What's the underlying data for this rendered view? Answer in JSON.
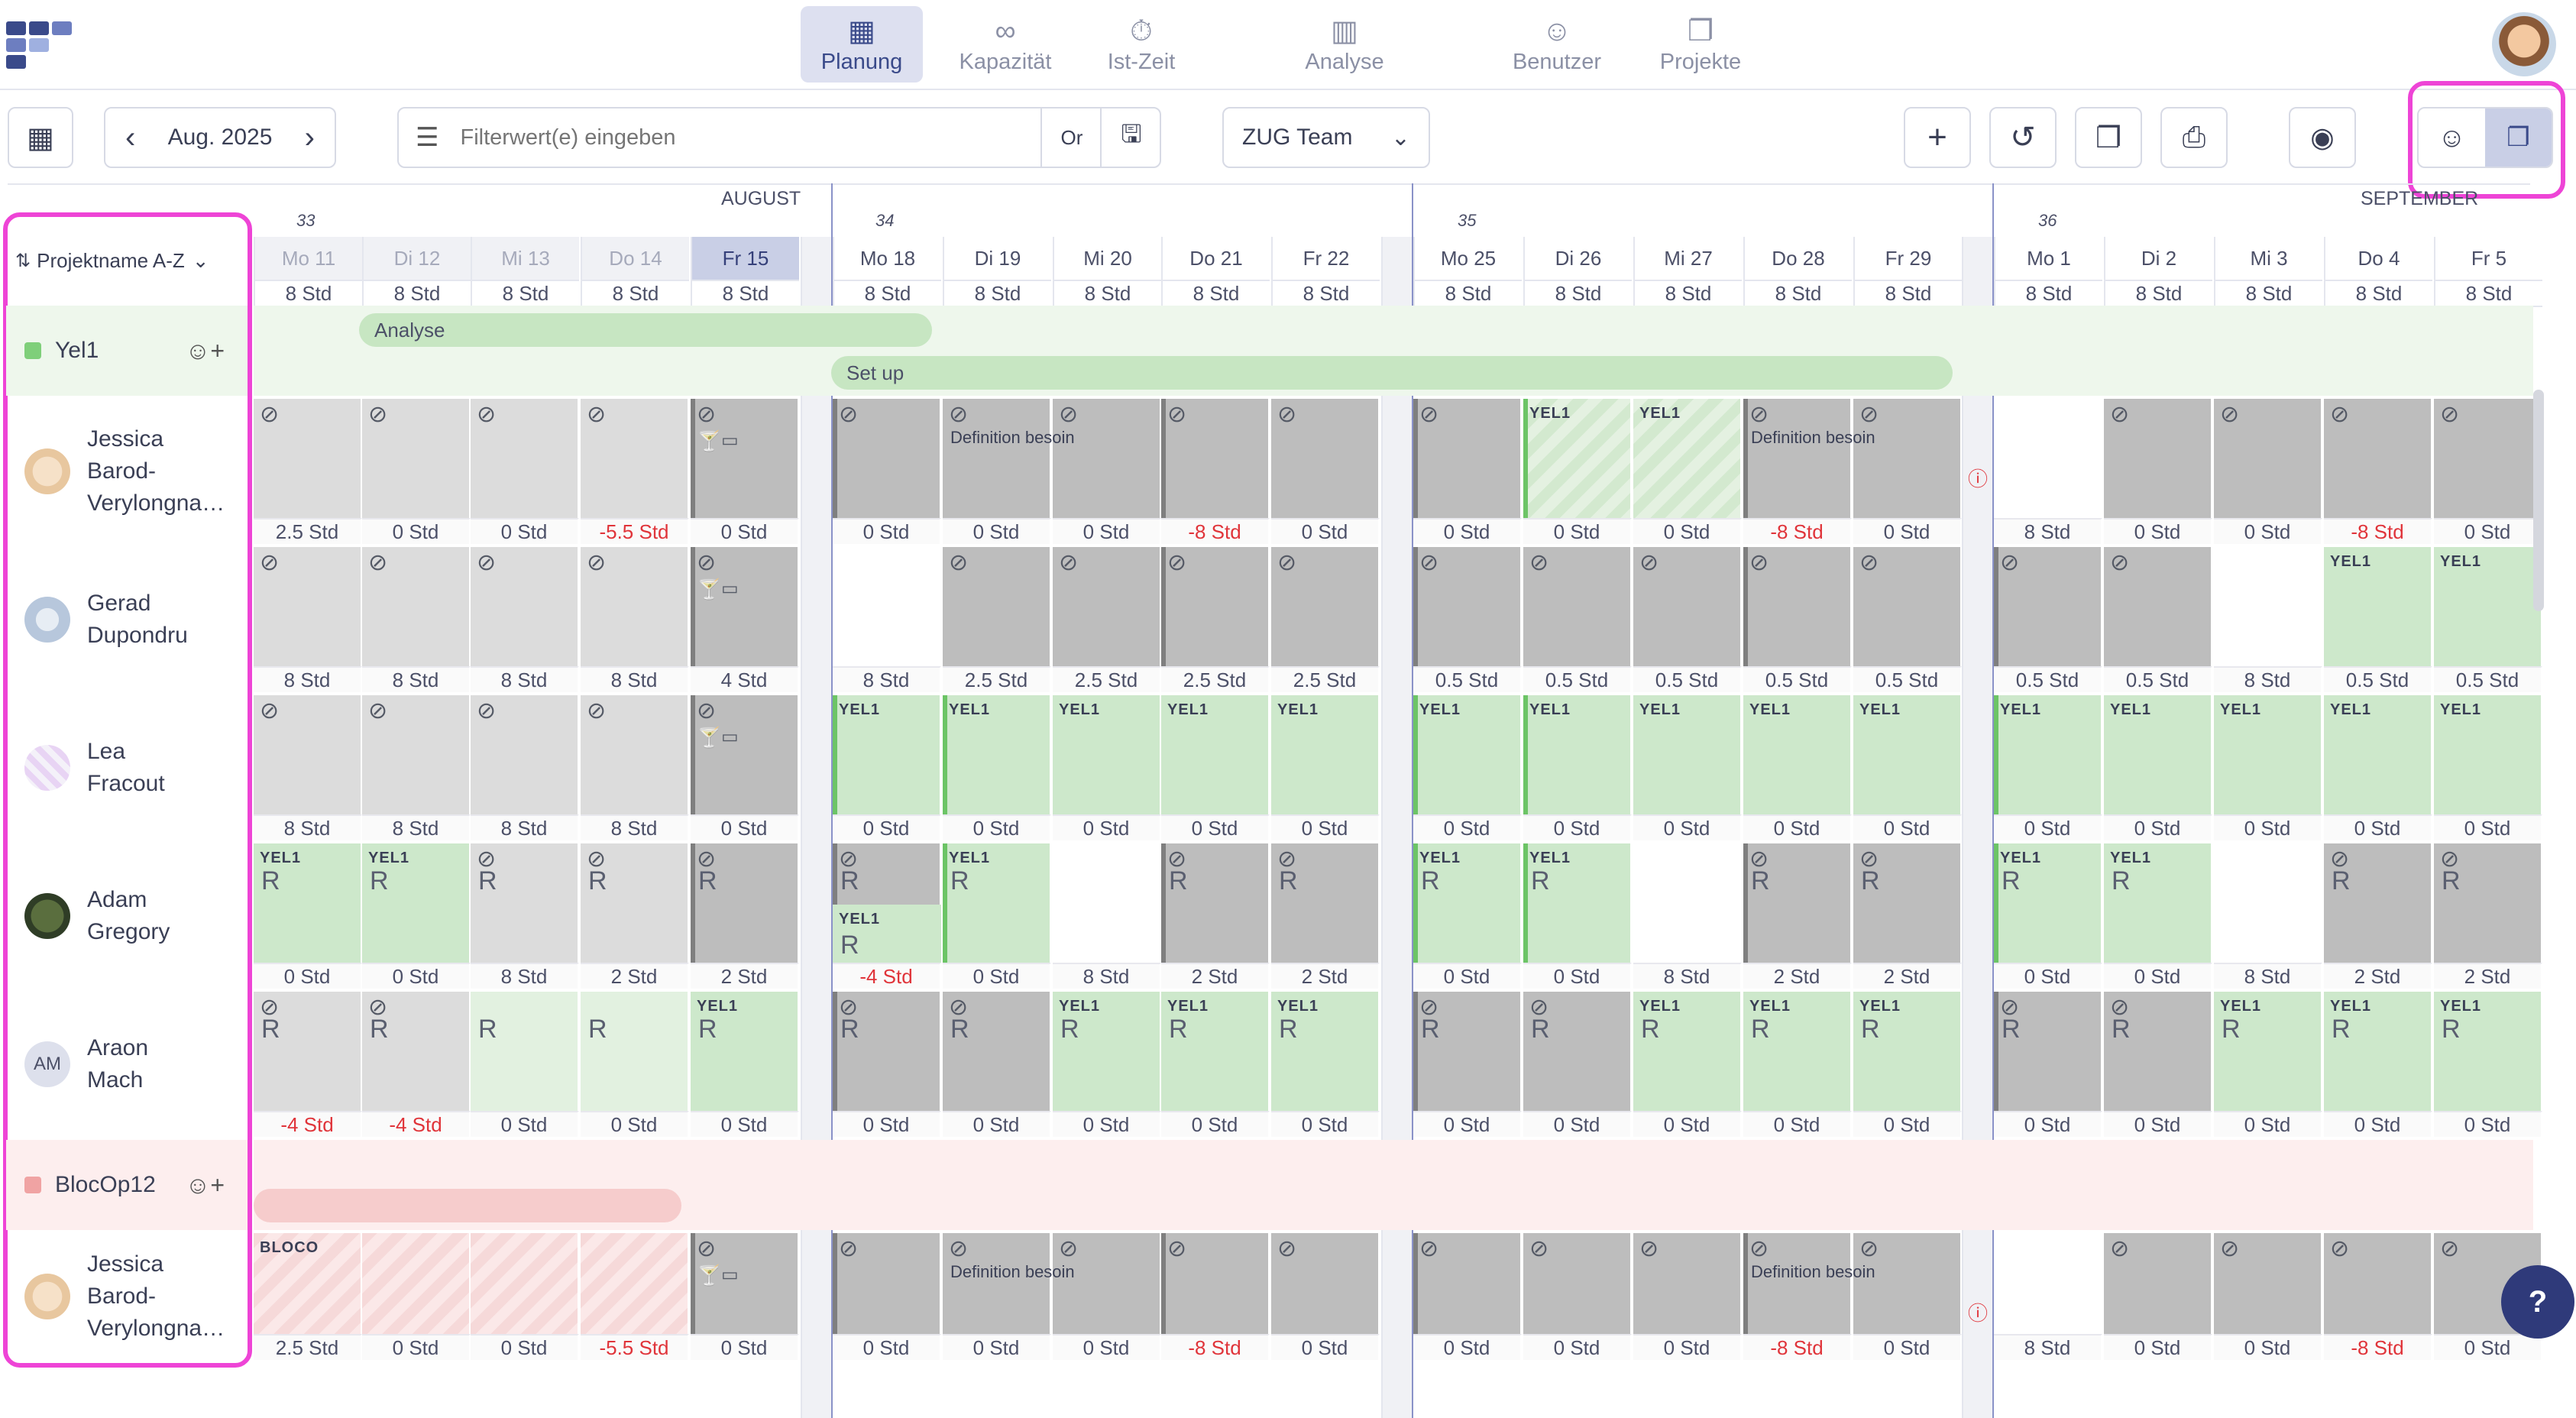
{
  "nav": {
    "items": [
      {
        "label": "Planung",
        "icon": "calendar-icon",
        "active": true
      },
      {
        "label": "Kapazität",
        "icon": "infinity-icon"
      },
      {
        "label": "Ist-Zeit",
        "icon": "stopwatch-icon"
      },
      {
        "label": "Analyse",
        "icon": "bar-chart-icon"
      },
      {
        "label": "Benutzer",
        "icon": "user-icon"
      },
      {
        "label": "Projekte",
        "icon": "folders-icon"
      }
    ]
  },
  "toolbar": {
    "month": "Aug. 2025",
    "filter_placeholder": "Filterwert(e) eingeben",
    "or_label": "Or",
    "team": "ZUG Team"
  },
  "calendar": {
    "months": [
      "AUGUST",
      "SEPTEMBER"
    ],
    "weeks": [
      "33",
      "34",
      "35",
      "36"
    ],
    "days": [
      "Mo 11",
      "Di 12",
      "Mi 13",
      "Do 14",
      "Fr 15",
      "Mo 18",
      "Di 19",
      "Mi 20",
      "Do 21",
      "Fr 22",
      "Mo 25",
      "Di 26",
      "Mi 27",
      "Do 28",
      "Fr 29",
      "Mo 1",
      "Di 2",
      "Mi 3",
      "Do 4",
      "Fr 5"
    ],
    "capacity": [
      "8 Std",
      "8 Std",
      "8 Std",
      "8 Std",
      "8 Std",
      "8 Std",
      "8 Std",
      "8 Std",
      "8 Std",
      "8 Std",
      "8 Std",
      "8 Std",
      "8 Std",
      "8 Std",
      "8 Std",
      "8 Std",
      "8 Std",
      "8 Std",
      "8 Std",
      "8 Std"
    ],
    "sort_label": "Projektname A-Z"
  },
  "projects": [
    {
      "name": "Yel1",
      "color": "#7fcf7a",
      "bars": [
        "Analyse",
        "Set up"
      ]
    },
    {
      "name": "BlocOp12",
      "color": "#f0a3a3",
      "bars": [
        ""
      ]
    }
  ],
  "people": [
    {
      "first": "Jessica",
      "last": "Barod-",
      "extra": "Verylongna…",
      "hours": [
        "2.5 Std",
        "0 Std",
        "0 Std",
        "-5.5 Std",
        "0 Std",
        "0 Std",
        "0 Std",
        "0 Std",
        "-8 Std",
        "0 Std",
        "0 Std",
        "0 Std",
        "0 Std",
        "-8 Std",
        "0 Std",
        "8 Std",
        "0 Std",
        "0 Std",
        "-8 Std",
        "0 Std"
      ]
    },
    {
      "first": "Gerad",
      "last": "Dupondru",
      "hours": [
        "8 Std",
        "8 Std",
        "8 Std",
        "8 Std",
        "4 Std",
        "8 Std",
        "2.5 Std",
        "2.5 Std",
        "2.5 Std",
        "2.5 Std",
        "0.5 Std",
        "0.5 Std",
        "0.5 Std",
        "0.5 Std",
        "0.5 Std",
        "0.5 Std",
        "0.5 Std",
        "8 Std",
        "0.5 Std",
        "0.5 Std"
      ]
    },
    {
      "first": "Lea",
      "last": "Fracout",
      "hours": [
        "8 Std",
        "8 Std",
        "8 Std",
        "8 Std",
        "0 Std",
        "0 Std",
        "0 Std",
        "0 Std",
        "0 Std",
        "0 Std",
        "0 Std",
        "0 Std",
        "0 Std",
        "0 Std",
        "0 Std",
        "0 Std",
        "0 Std",
        "0 Std",
        "0 Std",
        "0 Std"
      ]
    },
    {
      "first": "Adam",
      "last": "Gregory",
      "hours": [
        "0 Std",
        "0 Std",
        "8 Std",
        "2 Std",
        "2 Std",
        "-4 Std",
        "0 Std",
        "8 Std",
        "2 Std",
        "2 Std",
        "0 Std",
        "0 Std",
        "8 Std",
        "2 Std",
        "2 Std",
        "0 Std",
        "0 Std",
        "8 Std",
        "2 Std",
        "2 Std"
      ]
    },
    {
      "first": "Araon",
      "last": "Mach",
      "initials": "AM",
      "hours": [
        "-4 Std",
        "-4 Std",
        "0 Std",
        "0 Std",
        "0 Std",
        "0 Std",
        "0 Std",
        "0 Std",
        "0 Std",
        "0 Std",
        "0 Std",
        "0 Std",
        "0 Std",
        "0 Std",
        "0 Std",
        "0 Std",
        "0 Std",
        "0 Std",
        "0 Std",
        "0 Std"
      ]
    },
    {
      "first": "Jessica",
      "last": "Barod-",
      "extra": "Verylongna…",
      "hours": [
        "2.5 Std",
        "0 Std",
        "0 Std",
        "-5.5 Std",
        "0 Std",
        "0 Std",
        "0 Std",
        "0 Std",
        "-8 Std",
        "0 Std",
        "0 Std",
        "0 Std",
        "0 Std",
        "-8 Std",
        "0 Std",
        "8 Std",
        "0 Std",
        "0 Std",
        "-8 Std",
        "0 Std"
      ]
    }
  ],
  "labels": {
    "yel": "YEL1",
    "bloco": "BLOCO",
    "definition": "Definition besoin",
    "r": "R"
  },
  "help_label": "?"
}
